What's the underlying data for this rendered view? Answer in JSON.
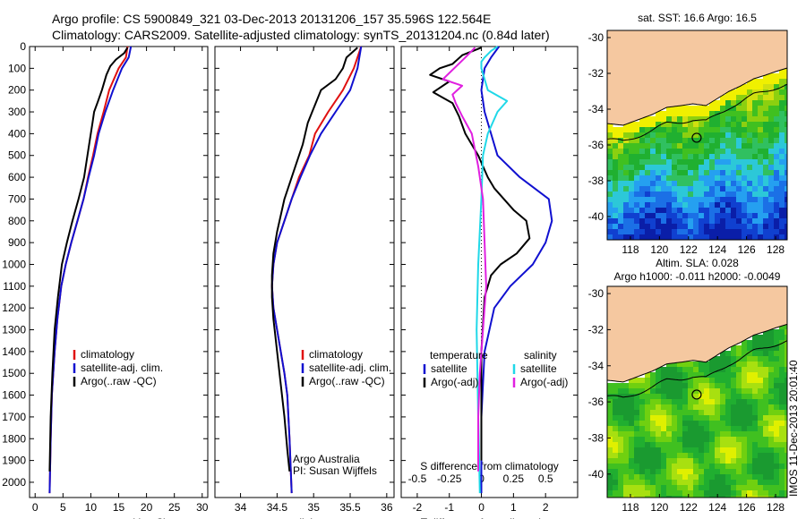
{
  "header": {
    "line1": "Argo profile: CS 5900849_321 03-Dec-2013 20131206_157 35.596S 122.564E",
    "line2": "Climatology: CARS2009. Satellite-adjusted climatology: synTS_20131204.nc (0.84d later)"
  },
  "sidebar_text": "IMOS 11-Dec-2013 20:01:40",
  "colors": {
    "climatology": "#e01010",
    "satellite": "#1010d0",
    "argo": "#000000",
    "sal_satellite": "#20d8e8",
    "sal_argo": "#e020e0",
    "land": "#f5c8a0"
  },
  "chart_data": [
    {
      "id": "temperature",
      "type": "line",
      "xlabel": "temperature (deg C)",
      "xlim": [
        -1,
        31
      ],
      "xticks": [
        0,
        5,
        10,
        15,
        20,
        25,
        30
      ],
      "xtick_labels": [
        "0",
        "5",
        "10",
        "15",
        "20",
        "25",
        "30"
      ],
      "ylim": [
        2070,
        0
      ],
      "yticks": [
        0,
        100,
        200,
        300,
        400,
        500,
        600,
        700,
        800,
        900,
        1000,
        1100,
        1200,
        1300,
        1400,
        1500,
        1600,
        1700,
        1800,
        1900,
        2000
      ],
      "ytick_labels": [
        "0",
        "100",
        "200",
        "300",
        "400",
        "500",
        "600",
        "700",
        "800",
        "900",
        "1000",
        "1100",
        "1200",
        "1300",
        "1400",
        "1500",
        "1600",
        "1700",
        "1800",
        "1900",
        "2000"
      ],
      "series": [
        {
          "name": "climatology",
          "color": "#e01010",
          "x": [
            16.6,
            16.3,
            15.0,
            13.3,
            12.3,
            11.2,
            10.4,
            9.5,
            8.7,
            7.6,
            6.5,
            5.5,
            4.7,
            4.0,
            3.5,
            3.0,
            2.8,
            2.6
          ],
          "y": [
            0,
            50,
            100,
            200,
            300,
            400,
            500,
            600,
            700,
            800,
            900,
            1000,
            1100,
            1250,
            1400,
            1600,
            1800,
            2050
          ]
        },
        {
          "name": "satellite-adj. clim.",
          "color": "#1010d0",
          "x": [
            17.2,
            16.8,
            15.6,
            14.0,
            12.6,
            11.4,
            10.6,
            9.6,
            8.7,
            7.6,
            6.5,
            5.5,
            4.7,
            4.0,
            3.5,
            3.0,
            2.8,
            2.6
          ],
          "y": [
            0,
            50,
            100,
            200,
            300,
            400,
            500,
            600,
            700,
            800,
            900,
            1000,
            1100,
            1250,
            1400,
            1600,
            1800,
            2050
          ]
        },
        {
          "name": "Argo(..raw -QC)",
          "color": "#000000",
          "x": [
            16.6,
            16.0,
            14.5,
            13.5,
            12.8,
            12.0,
            11.3,
            10.6,
            10.3,
            9.7,
            8.8,
            7.8,
            6.7,
            5.7,
            4.8,
            4.1,
            3.5,
            3.1,
            2.8,
            2.6
          ],
          "y": [
            5,
            30,
            60,
            90,
            130,
            200,
            250,
            300,
            350,
            450,
            600,
            700,
            800,
            900,
            1000,
            1150,
            1300,
            1500,
            1700,
            1950
          ]
        }
      ],
      "legend": [
        "climatology",
        "satellite-adj. clim.",
        "Argo(..raw -QC)"
      ],
      "legend_position": "lower-middle"
    },
    {
      "id": "salinity",
      "type": "line",
      "xlabel": "salinity",
      "xlim": [
        33.65,
        36.1
      ],
      "xticks": [
        34,
        34.5,
        35,
        35.5,
        36
      ],
      "xtick_labels": [
        "34",
        "34.5",
        "35",
        "35.5",
        "36"
      ],
      "ylim": [
        2070,
        0
      ],
      "series": [
        {
          "name": "climatology",
          "color": "#e01010",
          "x": [
            35.65,
            35.55,
            35.4,
            35.2,
            35.02,
            34.94,
            34.8,
            34.7,
            34.6,
            34.5,
            34.45,
            34.43,
            34.45,
            34.5,
            34.55,
            34.6,
            34.64,
            34.67,
            34.7
          ],
          "y": [
            0,
            100,
            200,
            300,
            400,
            500,
            600,
            700,
            800,
            900,
            1000,
            1100,
            1200,
            1300,
            1400,
            1500,
            1600,
            1800,
            2050
          ]
        },
        {
          "name": "satellite-adj. clim.",
          "color": "#1010d0",
          "x": [
            35.65,
            35.6,
            35.5,
            35.3,
            35.1,
            34.95,
            34.82,
            34.7,
            34.6,
            34.5,
            34.45,
            34.43,
            34.45,
            34.5,
            34.55,
            34.6,
            34.64,
            34.67,
            34.7
          ],
          "y": [
            0,
            100,
            200,
            300,
            400,
            500,
            600,
            700,
            800,
            900,
            1000,
            1100,
            1200,
            1300,
            1400,
            1500,
            1600,
            1800,
            2050
          ]
        },
        {
          "name": "Argo(..raw -QC)",
          "color": "#000000",
          "x": [
            35.6,
            35.45,
            35.4,
            35.3,
            35.1,
            34.98,
            34.92,
            34.85,
            34.75,
            34.6,
            34.5,
            34.45,
            34.43,
            34.43,
            34.45,
            34.5,
            34.55,
            34.6,
            34.64,
            34.67
          ],
          "y": [
            5,
            50,
            100,
            150,
            200,
            300,
            350,
            450,
            550,
            700,
            850,
            950,
            1050,
            1150,
            1250,
            1400,
            1550,
            1700,
            1850,
            1950
          ]
        }
      ],
      "legend": [
        "climatology",
        "satellite-adj. clim.",
        "Argo(..raw -QC)"
      ],
      "annotations": [
        "Argo Australia",
        "PI: Susan Wijffels"
      ]
    },
    {
      "id": "difference",
      "type": "line",
      "xlabel": "T difference from climatology",
      "xlabel_top": "S difference from climatology",
      "xlim": [
        -2.5,
        3.0
      ],
      "xticks": [
        -2,
        -1,
        0,
        1,
        2
      ],
      "xtick_labels": [
        "-2",
        "-1",
        "0",
        "1",
        "2"
      ],
      "xticks_top_positions": [
        -2,
        -1,
        0,
        1,
        2
      ],
      "xticks_top_labels": [
        "-0.5",
        "-0.25",
        "0",
        "0.25",
        "0.5"
      ],
      "ylim": [
        2070,
        0
      ],
      "series": [
        {
          "name": "temperature satellite",
          "color": "#1010d0",
          "x": [
            0.55,
            0.3,
            0.1,
            0.0,
            0.1,
            0.3,
            0.5,
            1.2,
            2.1,
            2.2,
            2.0,
            1.6,
            0.9,
            0.4,
            0.1,
            0.0,
            0.0
          ],
          "y": [
            0,
            50,
            100,
            200,
            300,
            400,
            500,
            600,
            700,
            800,
            900,
            1000,
            1100,
            1200,
            1400,
            1700,
            2050
          ]
        },
        {
          "name": "temperature Argo(-adj)",
          "color": "#000000",
          "x": [
            0.0,
            -0.6,
            -0.9,
            -1.3,
            -1.6,
            -1.0,
            -1.5,
            -0.9,
            -0.7,
            -0.5,
            -0.1,
            0.2,
            0.4,
            1.0,
            1.4,
            1.5,
            1.1,
            0.6,
            0.3,
            0.1,
            0.0,
            0.0
          ],
          "y": [
            5,
            40,
            80,
            100,
            130,
            160,
            210,
            260,
            320,
            400,
            500,
            600,
            650,
            750,
            800,
            880,
            950,
            1000,
            1050,
            1150,
            1400,
            1900
          ]
        },
        {
          "name": "salinity satellite",
          "color": "#20d8e8",
          "x": [
            0.5,
            0.3,
            0.1,
            0.0,
            0.0,
            0.2,
            0.8,
            0.5,
            0.2,
            0.05,
            0.0,
            -0.1,
            -0.15,
            -0.1,
            -0.05
          ],
          "y": [
            0,
            20,
            50,
            70,
            100,
            200,
            250,
            300,
            400,
            500,
            700,
            1000,
            1300,
            1700,
            2050
          ]
        },
        {
          "name": "salinity Argo(-adj)",
          "color": "#e020e0",
          "x": [
            -0.2,
            -0.5,
            -1.2,
            -0.6,
            -0.9,
            -0.8,
            -0.6,
            -0.3,
            -0.1,
            0.05,
            0.1,
            0.15,
            0.05,
            -0.05,
            -0.1,
            -0.1
          ],
          "y": [
            5,
            50,
            150,
            180,
            220,
            260,
            320,
            400,
            550,
            700,
            900,
            1100,
            1300,
            1500,
            1700,
            1950
          ]
        }
      ],
      "legend_temperature": {
        "title": "temperature",
        "items": [
          "satellite",
          "Argo(-adj)"
        ]
      },
      "legend_salinity": {
        "title": "salinity",
        "items": [
          "satellite",
          "Argo(-adj)"
        ]
      }
    },
    {
      "id": "sst_map",
      "type": "heatmap",
      "title": "sat. SST: 16.6 Argo: 16.5",
      "xlim": [
        116.4,
        128.8
      ],
      "ylim": [
        -41.3,
        -29.6
      ],
      "xticks": [
        118,
        120,
        122,
        124,
        126,
        128
      ],
      "xtick_labels": [
        "118",
        "120",
        "122",
        "124",
        "126",
        "128"
      ],
      "yticks": [
        -30,
        -32,
        -34,
        -36,
        -38,
        -40
      ],
      "ytick_labels": [
        "-30",
        "-32",
        "-34",
        "-36",
        "-38",
        "-40"
      ],
      "argo_position": {
        "lon": 122.564,
        "lat": -35.596
      }
    },
    {
      "id": "sla_map",
      "type": "heatmap",
      "title": "Altim. SLA: 0.028",
      "subtitle": "Argo h1000: -0.011 h2000: -0.0049",
      "xlim": [
        116.4,
        128.8
      ],
      "ylim": [
        -41.3,
        -29.6
      ],
      "xticks": [
        118,
        120,
        122,
        124,
        126,
        128
      ],
      "xtick_labels": [
        "118",
        "120",
        "122",
        "124",
        "126",
        "128"
      ],
      "yticks": [
        -30,
        -32,
        -34,
        -36,
        -38,
        -40
      ],
      "ytick_labels": [
        "-30",
        "-32",
        "-34",
        "-36",
        "-38",
        "-40"
      ],
      "argo_position": {
        "lon": 122.564,
        "lat": -35.596
      }
    }
  ]
}
